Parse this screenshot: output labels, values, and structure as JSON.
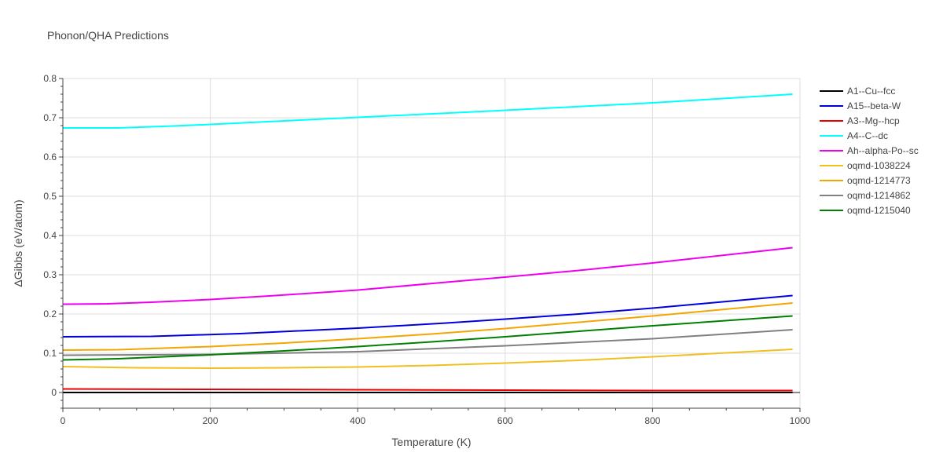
{
  "chart_data": {
    "type": "line",
    "title": "Phonon/QHA Predictions",
    "xlabel": "Temperature (K)",
    "ylabel": "ΔGibbs (eV/atom)",
    "xlim": [
      0,
      1000
    ],
    "ylim": [
      -0.04,
      0.8
    ],
    "xticks": [
      0,
      200,
      400,
      600,
      800,
      1000
    ],
    "yticks": [
      0,
      0.1,
      0.2,
      0.3,
      0.4,
      0.5,
      0.6,
      0.7,
      0.8
    ],
    "xtick_labels": [
      "0",
      "200",
      "400",
      "600",
      "800",
      "1000"
    ],
    "ytick_labels": [
      "0",
      "0.1",
      "0.2",
      "0.3",
      "0.4",
      "0.5",
      "0.6",
      "0.7",
      "0.8"
    ],
    "grid": true,
    "legend_position": "right",
    "series": [
      {
        "name": "A1--Cu--fcc",
        "color": "#000000",
        "x": [
          0,
          200,
          400,
          600,
          800,
          990
        ],
        "y": [
          0,
          0,
          0,
          0,
          0,
          0
        ]
      },
      {
        "name": "A15--beta-W",
        "color": "#0000dd",
        "x": [
          0,
          120,
          240,
          400,
          520,
          600,
          700,
          800,
          990
        ],
        "y": [
          0.142,
          0.143,
          0.15,
          0.164,
          0.177,
          0.187,
          0.2,
          0.215,
          0.247
        ]
      },
      {
        "name": "A3--Mg--hcp",
        "color": "#ee0000",
        "x": [
          0,
          200,
          400,
          600,
          800,
          990
        ],
        "y": [
          0.009,
          0.008,
          0.007,
          0.006,
          0.005,
          0.005
        ]
      },
      {
        "name": "A4--C--dc",
        "color": "#00ffff",
        "x": [
          0,
          75,
          150,
          200,
          400,
          600,
          800,
          990
        ],
        "y": [
          0.674,
          0.674,
          0.679,
          0.683,
          0.701,
          0.719,
          0.738,
          0.76
        ]
      },
      {
        "name": "Ah--alpha-Po--sc",
        "color": "#ee00ee",
        "x": [
          0,
          60,
          120,
          200,
          280,
          400,
          520,
          600,
          700,
          800,
          990
        ],
        "y": [
          0.225,
          0.226,
          0.23,
          0.237,
          0.246,
          0.261,
          0.281,
          0.294,
          0.311,
          0.33,
          0.369
        ]
      },
      {
        "name": "oqmd-1038224",
        "color": "#f0c020",
        "x": [
          0,
          100,
          200,
          300,
          400,
          500,
          600,
          700,
          800,
          990
        ],
        "y": [
          0.066,
          0.063,
          0.062,
          0.063,
          0.065,
          0.069,
          0.075,
          0.082,
          0.091,
          0.11
        ]
      },
      {
        "name": "oqmd-1214773",
        "color": "#f5a500",
        "x": [
          0,
          75,
          200,
          300,
          400,
          500,
          600,
          700,
          800,
          990
        ],
        "y": [
          0.108,
          0.109,
          0.117,
          0.126,
          0.137,
          0.149,
          0.163,
          0.179,
          0.195,
          0.228
        ]
      },
      {
        "name": "oqmd-1214862",
        "color": "#808080",
        "x": [
          0,
          200,
          400,
          600,
          800,
          990
        ],
        "y": [
          0.095,
          0.097,
          0.104,
          0.119,
          0.137,
          0.16
        ]
      },
      {
        "name": "oqmd-1215040",
        "color": "#008000",
        "x": [
          0,
          75,
          200,
          300,
          400,
          500,
          600,
          700,
          800,
          990
        ],
        "y": [
          0.083,
          0.086,
          0.096,
          0.106,
          0.117,
          0.129,
          0.142,
          0.156,
          0.17,
          0.195
        ]
      }
    ]
  }
}
